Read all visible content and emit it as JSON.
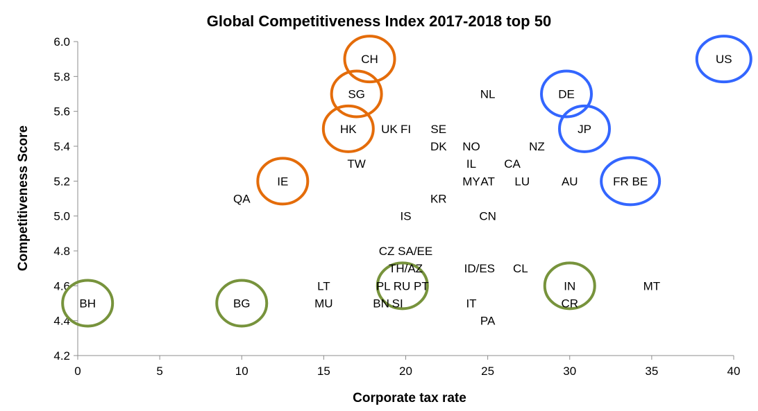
{
  "chart_data": {
    "type": "scatter",
    "title": "Global Competitiveness Index 2017-2018 top 50",
    "xlabel": "Corporate tax rate",
    "ylabel": "Competitiveness Score",
    "xlim": [
      0,
      40
    ],
    "ylim": [
      4.2,
      6.0
    ],
    "x_ticks": [
      0,
      5,
      10,
      15,
      20,
      25,
      30,
      35,
      40
    ],
    "y_ticks": [
      4.2,
      4.4,
      4.6,
      4.8,
      5.0,
      5.2,
      5.4,
      5.6,
      5.8,
      6.0
    ],
    "grid": "none",
    "colors": {
      "orange": "#E46C0A",
      "blue": "#3366FF",
      "green": "#77933C"
    },
    "points": [
      {
        "label": "US",
        "x": 39.4,
        "y": 5.9,
        "circle": "blue"
      },
      {
        "label": "CH",
        "x": 17.8,
        "y": 5.9,
        "circle": "orange"
      },
      {
        "label": "SG",
        "x": 17.0,
        "y": 5.7,
        "circle": "orange"
      },
      {
        "label": "NL",
        "x": 25.0,
        "y": 5.7
      },
      {
        "label": "DE",
        "x": 29.8,
        "y": 5.7,
        "circle": "blue"
      },
      {
        "label": "HK",
        "x": 16.5,
        "y": 5.5,
        "circle": "orange"
      },
      {
        "label": "UK",
        "x": 19.0,
        "y": 5.5
      },
      {
        "label": "FI",
        "x": 20.0,
        "y": 5.5
      },
      {
        "label": "SE",
        "x": 22.0,
        "y": 5.5
      },
      {
        "label": "JP",
        "x": 30.9,
        "y": 5.5,
        "circle": "blue"
      },
      {
        "label": "DK",
        "x": 22.0,
        "y": 5.4
      },
      {
        "label": "NO",
        "x": 24.0,
        "y": 5.4
      },
      {
        "label": "NZ",
        "x": 28.0,
        "y": 5.4
      },
      {
        "label": "TW",
        "x": 17.0,
        "y": 5.3
      },
      {
        "label": "IL",
        "x": 24.0,
        "y": 5.3
      },
      {
        "label": "CA",
        "x": 26.5,
        "y": 5.3
      },
      {
        "label": "IE",
        "x": 12.5,
        "y": 5.2,
        "circle": "orange"
      },
      {
        "label": "MY",
        "x": 24.0,
        "y": 5.2
      },
      {
        "label": "AT",
        "x": 25.0,
        "y": 5.2
      },
      {
        "label": "LU",
        "x": 27.1,
        "y": 5.2
      },
      {
        "label": "AU",
        "x": 30.0,
        "y": 5.2
      },
      {
        "label": "FR BE",
        "x": 33.7,
        "y": 5.2,
        "circle": "blue"
      },
      {
        "label": "QA",
        "x": 10.0,
        "y": 5.1
      },
      {
        "label": "KR",
        "x": 22.0,
        "y": 5.1
      },
      {
        "label": "IS",
        "x": 20.0,
        "y": 5.0
      },
      {
        "label": "CN",
        "x": 25.0,
        "y": 5.0
      },
      {
        "label": "CZ SA/EE",
        "x": 20.0,
        "y": 4.8
      },
      {
        "label": "TH/AZ",
        "x": 20.0,
        "y": 4.7
      },
      {
        "label": "ID/ES",
        "x": 24.5,
        "y": 4.7
      },
      {
        "label": "CL",
        "x": 27.0,
        "y": 4.7
      },
      {
        "label": "LT",
        "x": 15.0,
        "y": 4.6
      },
      {
        "label": "PL RU PT",
        "x": 19.8,
        "y": 4.6,
        "circle": "green"
      },
      {
        "label": "IN",
        "x": 30.0,
        "y": 4.6,
        "circle": "green"
      },
      {
        "label": "MT",
        "x": 35.0,
        "y": 4.6
      },
      {
        "label": "BH",
        "x": 0.6,
        "y": 4.5,
        "circle": "green"
      },
      {
        "label": "BG",
        "x": 10.0,
        "y": 4.5,
        "circle": "green"
      },
      {
        "label": "MU",
        "x": 15.0,
        "y": 4.5
      },
      {
        "label": "BN",
        "x": 18.5,
        "y": 4.5
      },
      {
        "label": "SI",
        "x": 19.5,
        "y": 4.5
      },
      {
        "label": "IT",
        "x": 24.0,
        "y": 4.5
      },
      {
        "label": "CR",
        "x": 30.0,
        "y": 4.5
      },
      {
        "label": "PA",
        "x": 25.0,
        "y": 4.4
      }
    ]
  }
}
